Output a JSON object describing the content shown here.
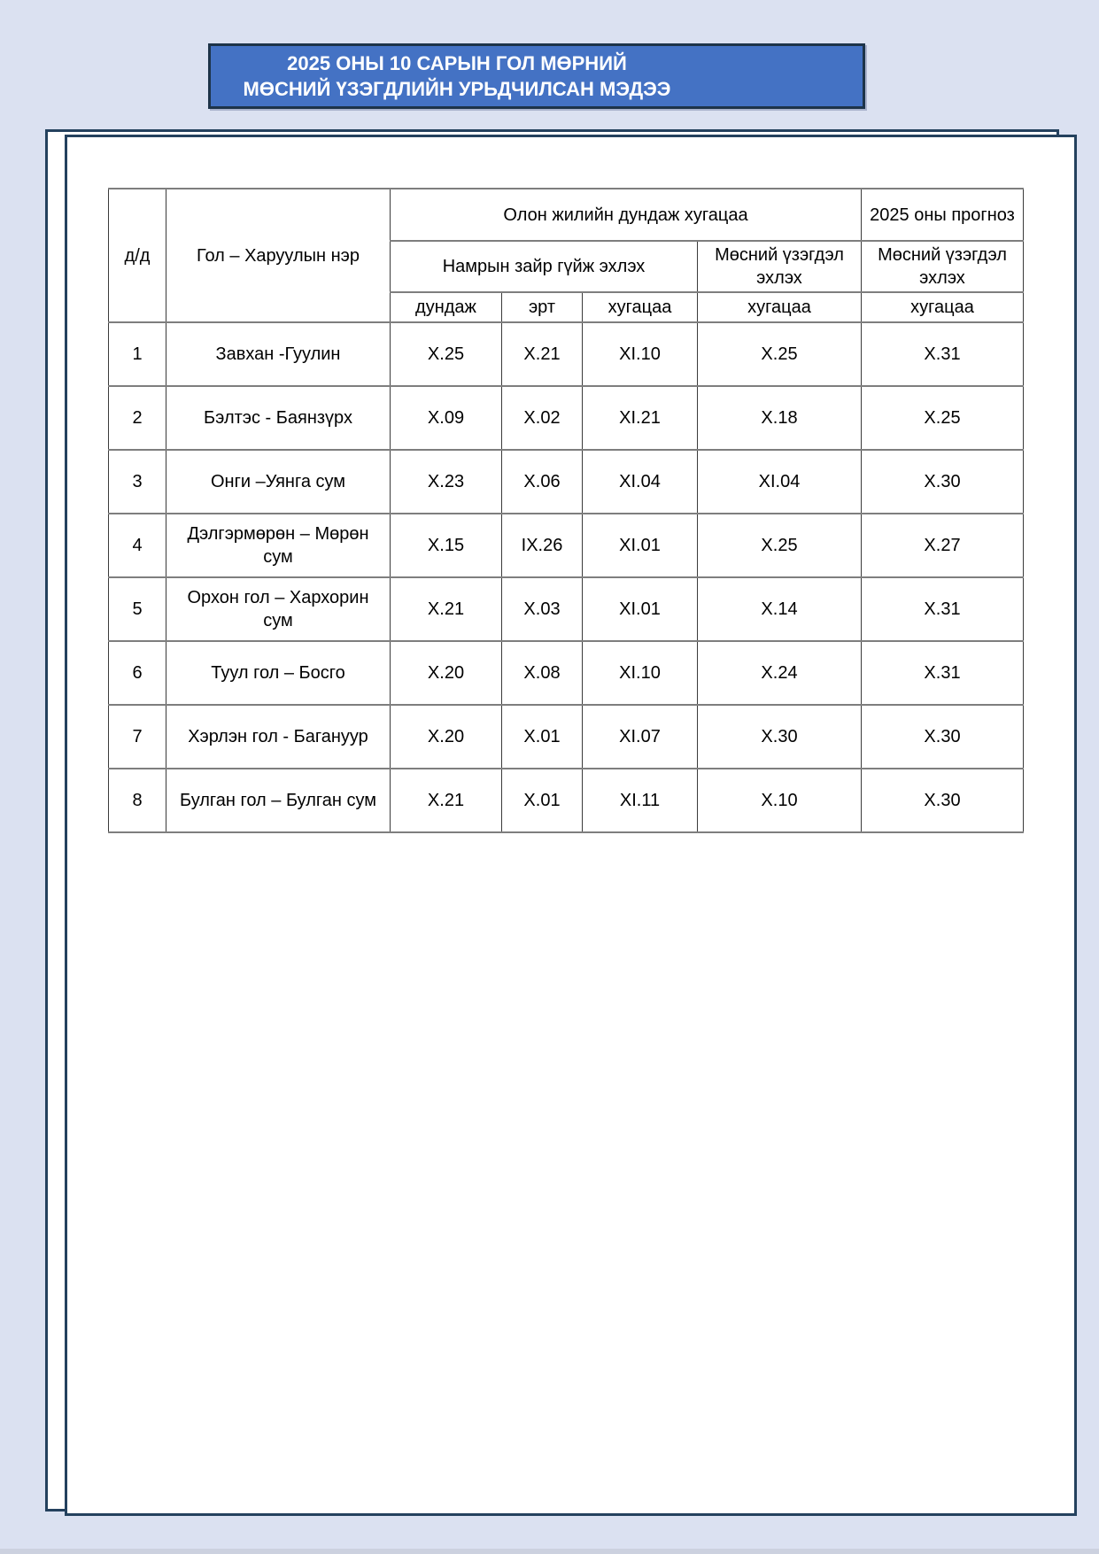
{
  "banner": {
    "line1": "2025 ОНЫ 10 САРЫН ГОЛ МӨРНИЙ",
    "line2": "МӨСНИЙ ҮЗЭГДЛИЙН УРЬДЧИЛСАН МЭДЭЭ"
  },
  "table": {
    "header": {
      "num": "д/д",
      "station": "Гол – Харуулын нэр",
      "long_term_avg": "Олон жилийн дундаж хугацаа",
      "forecast_2025": "2025 оны прогноз",
      "autumn_ice_run_start": "Намрын зайр гүйж эхлэх",
      "ice_phenomena_start": "Мөсний үзэгдэл эхлэх",
      "forecast_ice_phenomena_start": "Мөсний үзэгдэл эхлэх",
      "avg": "дундаж",
      "early": "эрт",
      "period_a": "хугацаа",
      "period_b": "хугацаа",
      "period_c": "хугацаа"
    },
    "rows": [
      [
        "1",
        "Завхан -Гуулин",
        "X.25",
        "X.21",
        "XI.10",
        "X.25",
        "X.31"
      ],
      [
        "2",
        "Бэлтэс - Баянзүрх",
        "X.09",
        "X.02",
        "XI.21",
        "X.18",
        "X.25"
      ],
      [
        "3",
        "Онги –Уянга сум",
        "X.23",
        "X.06",
        "XI.04",
        "XI.04",
        "X.30"
      ],
      [
        "4",
        "Дэлгэрмөрөн – Мөрөн сум",
        "X.15",
        "IX.26",
        "XI.01",
        "X.25",
        "X.27"
      ],
      [
        "5",
        "Орхон гол – Хархорин сум",
        "X.21",
        "X.03",
        "XI.01",
        "X.14",
        "X.31"
      ],
      [
        "6",
        "Туул гол – Босго",
        "X.20",
        "X.08",
        "XI.10",
        "X.24",
        "X.31"
      ],
      [
        "7",
        "Хэрлэн гол - Багануур",
        "X.20",
        "X.01",
        "XI.07",
        "X.30",
        "X.30"
      ],
      [
        "8",
        "Булган гол – Булган сум",
        "X.21",
        "X.01",
        "XI.11",
        "X.10",
        "X.30"
      ]
    ]
  },
  "colors": {
    "background": "#dbe1f1",
    "banner_fill": "#4472c4",
    "banner_border": "#1d3349",
    "page_border": "#24415e",
    "table_vertical_border": "#3a3a3a",
    "table_horizontal_border": "#7e7e7e",
    "text": "#000000",
    "banner_text": "#ffffff"
  }
}
